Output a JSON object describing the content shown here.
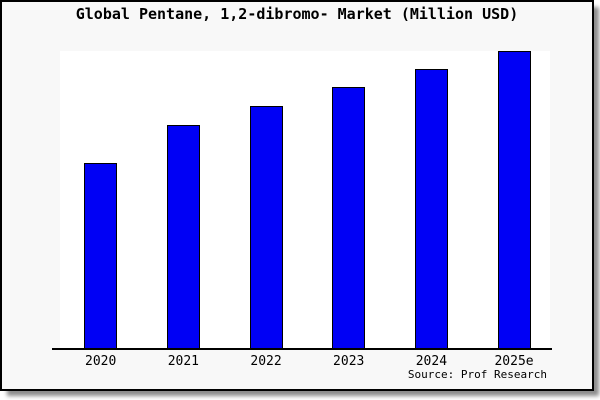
{
  "chart_data": {
    "type": "bar",
    "title": "Global Pentane, 1,2-dibromo- Market (Million USD)",
    "categories": [
      "2020",
      "2021",
      "2022",
      "2023",
      "2024",
      "2025e"
    ],
    "values": [
      62.5,
      75.3,
      81.6,
      88.0,
      94.0,
      100.0
    ],
    "values_note": "relative bar heights as % of tallest bar (2025e); y-axis has no ticks, labels or gridlines in the image",
    "xlabel": "",
    "ylabel": "",
    "grid": false,
    "legend": false,
    "source": "Source: Prof Research"
  },
  "colors": {
    "bar_fill": "#0000f5",
    "bar_border": "#000000",
    "page_background": "#f8f8f8",
    "plot_background": "#ffffff",
    "frame_border": "#000000",
    "text": "#000000"
  }
}
